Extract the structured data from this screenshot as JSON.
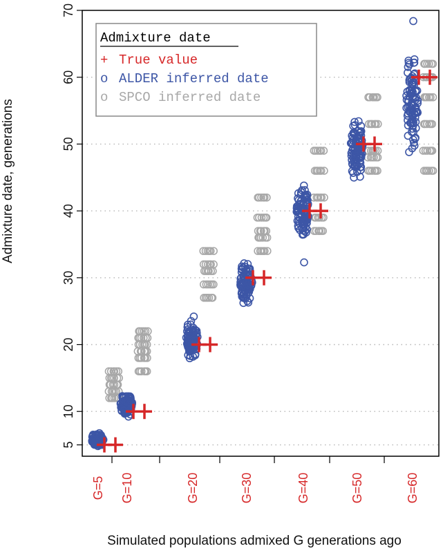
{
  "chart_data": {
    "type": "scatter",
    "title": "",
    "xlabel": "Simulated populations admixed G generations ago",
    "ylabel": "Admixture date, generations",
    "ylim": [
      3.3,
      70
    ],
    "yticks": [
      5,
      10,
      20,
      30,
      40,
      50,
      60,
      70
    ],
    "grid": "horizontal dotted lines",
    "legend": {
      "placement": "top-left",
      "title": "Admixture date",
      "entries": [
        {
          "symbol": "+",
          "label": "True value",
          "color": "#d62728"
        },
        {
          "symbol": "o",
          "label": "ALDER inferred date",
          "color": "#3d56a6"
        },
        {
          "symbol": "o",
          "label": "SPCO inferred date",
          "color": "#a8a8a8"
        }
      ]
    },
    "categories": [
      "G=5",
      "G=10",
      "G=20",
      "G=30",
      "G=40",
      "G=50",
      "G=60"
    ],
    "category_color": "#d62728",
    "true_values": [
      5,
      10,
      20,
      30,
      40,
      50,
      60
    ],
    "series": [
      {
        "name": "ALDER inferred date",
        "color": "#3d56a6",
        "ranges": [
          {
            "category": "G=5",
            "min": 4.6,
            "max": 7.0,
            "outliers": []
          },
          {
            "category": "G=10",
            "min": 8.8,
            "max": 13.2,
            "outliers": []
          },
          {
            "category": "G=20",
            "min": 17.0,
            "max": 24.5,
            "outliers": []
          },
          {
            "category": "G=30",
            "min": 25.0,
            "max": 33.5,
            "outliers": []
          },
          {
            "category": "G=40",
            "min": 35.0,
            "max": 45.0,
            "outliers": [
              32.3
            ]
          },
          {
            "category": "G=50",
            "min": 43.0,
            "max": 55.5,
            "outliers": []
          },
          {
            "category": "G=60",
            "min": 47.0,
            "max": 65.5,
            "outliers": [
              68.4
            ]
          }
        ]
      },
      {
        "name": "SPCO inferred date",
        "color": "#a8a8a8",
        "levels": [
          {
            "category": "G=5",
            "values": [
              12,
              13,
              14,
              15,
              16
            ]
          },
          {
            "category": "G=10",
            "values": [
              16,
              18,
              19,
              20,
              21,
              22
            ]
          },
          {
            "category": "G=20",
            "values": [
              27,
              29,
              31,
              32,
              34
            ]
          },
          {
            "category": "G=30",
            "values": [
              34,
              36,
              37,
              39,
              42
            ]
          },
          {
            "category": "G=40",
            "values": [
              37,
              39,
              42,
              46,
              49
            ]
          },
          {
            "category": "G=50",
            "values": [
              46,
              48,
              49,
              53,
              57
            ]
          },
          {
            "category": "G=60",
            "values": [
              46,
              49,
              53,
              57,
              60,
              62
            ]
          }
        ]
      }
    ]
  }
}
